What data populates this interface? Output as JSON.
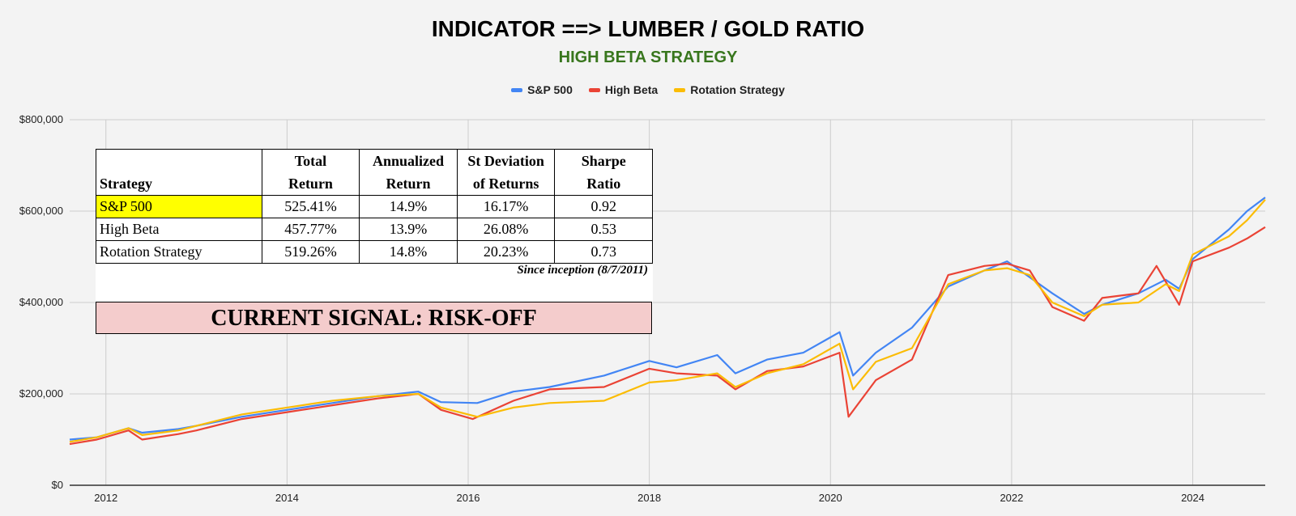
{
  "chart_data": {
    "type": "line",
    "title": "INDICATOR ==> LUMBER / GOLD RATIO",
    "subtitle": "HIGH BETA STRATEGY",
    "xlabel": "",
    "ylabel": "",
    "ylim": [
      0,
      800000
    ],
    "xlim": [
      2011.6,
      2024.8
    ],
    "grid": true,
    "legend_position": "top",
    "y_ticks": [
      "$0",
      "$200,000",
      "$400,000",
      "$600,000",
      "$800,000"
    ],
    "x_ticks": [
      "2012",
      "2014",
      "2016",
      "2018",
      "2020",
      "2022",
      "2024"
    ],
    "series": [
      {
        "name": "S&P 500",
        "color": "#4285f4",
        "points": [
          [
            2011.6,
            100000
          ],
          [
            2011.9,
            105000
          ],
          [
            2012.25,
            125000
          ],
          [
            2012.4,
            115000
          ],
          [
            2012.8,
            123000
          ],
          [
            2013.0,
            130000
          ],
          [
            2013.5,
            150000
          ],
          [
            2014.0,
            165000
          ],
          [
            2014.5,
            180000
          ],
          [
            2015.0,
            195000
          ],
          [
            2015.45,
            205000
          ],
          [
            2015.7,
            182000
          ],
          [
            2016.1,
            180000
          ],
          [
            2016.5,
            205000
          ],
          [
            2016.9,
            215000
          ],
          [
            2017.5,
            240000
          ],
          [
            2018.0,
            272000
          ],
          [
            2018.3,
            258000
          ],
          [
            2018.75,
            285000
          ],
          [
            2018.95,
            245000
          ],
          [
            2019.3,
            275000
          ],
          [
            2019.7,
            290000
          ],
          [
            2020.1,
            335000
          ],
          [
            2020.25,
            240000
          ],
          [
            2020.5,
            290000
          ],
          [
            2020.9,
            345000
          ],
          [
            2021.3,
            435000
          ],
          [
            2021.7,
            470000
          ],
          [
            2021.95,
            490000
          ],
          [
            2022.2,
            455000
          ],
          [
            2022.45,
            420000
          ],
          [
            2022.8,
            375000
          ],
          [
            2023.0,
            395000
          ],
          [
            2023.4,
            420000
          ],
          [
            2023.7,
            450000
          ],
          [
            2023.85,
            430000
          ],
          [
            2024.0,
            495000
          ],
          [
            2024.4,
            560000
          ],
          [
            2024.6,
            600000
          ],
          [
            2024.8,
            630000
          ]
        ]
      },
      {
        "name": "High Beta",
        "color": "#ea4335",
        "points": [
          [
            2011.6,
            90000
          ],
          [
            2011.9,
            100000
          ],
          [
            2012.25,
            120000
          ],
          [
            2012.4,
            100000
          ],
          [
            2012.8,
            112000
          ],
          [
            2013.0,
            120000
          ],
          [
            2013.5,
            145000
          ],
          [
            2014.0,
            160000
          ],
          [
            2014.5,
            175000
          ],
          [
            2015.0,
            190000
          ],
          [
            2015.45,
            200000
          ],
          [
            2015.7,
            165000
          ],
          [
            2016.05,
            145000
          ],
          [
            2016.5,
            185000
          ],
          [
            2016.9,
            210000
          ],
          [
            2017.5,
            215000
          ],
          [
            2018.0,
            255000
          ],
          [
            2018.3,
            245000
          ],
          [
            2018.75,
            240000
          ],
          [
            2018.95,
            210000
          ],
          [
            2019.3,
            250000
          ],
          [
            2019.7,
            260000
          ],
          [
            2020.1,
            290000
          ],
          [
            2020.2,
            150000
          ],
          [
            2020.5,
            230000
          ],
          [
            2020.9,
            275000
          ],
          [
            2021.3,
            460000
          ],
          [
            2021.7,
            480000
          ],
          [
            2021.95,
            485000
          ],
          [
            2022.2,
            470000
          ],
          [
            2022.45,
            390000
          ],
          [
            2022.8,
            360000
          ],
          [
            2023.0,
            410000
          ],
          [
            2023.4,
            420000
          ],
          [
            2023.6,
            480000
          ],
          [
            2023.85,
            395000
          ],
          [
            2024.0,
            490000
          ],
          [
            2024.4,
            520000
          ],
          [
            2024.6,
            540000
          ],
          [
            2024.8,
            565000
          ]
        ]
      },
      {
        "name": "Rotation Strategy",
        "color": "#fbbc04",
        "points": [
          [
            2011.6,
            95000
          ],
          [
            2011.9,
            105000
          ],
          [
            2012.25,
            125000
          ],
          [
            2012.4,
            110000
          ],
          [
            2012.8,
            120000
          ],
          [
            2013.0,
            130000
          ],
          [
            2013.5,
            155000
          ],
          [
            2014.0,
            170000
          ],
          [
            2014.5,
            185000
          ],
          [
            2015.0,
            195000
          ],
          [
            2015.45,
            200000
          ],
          [
            2015.7,
            170000
          ],
          [
            2016.1,
            150000
          ],
          [
            2016.5,
            170000
          ],
          [
            2016.9,
            180000
          ],
          [
            2017.5,
            185000
          ],
          [
            2018.0,
            225000
          ],
          [
            2018.3,
            230000
          ],
          [
            2018.75,
            245000
          ],
          [
            2018.95,
            215000
          ],
          [
            2019.3,
            245000
          ],
          [
            2019.7,
            265000
          ],
          [
            2020.1,
            310000
          ],
          [
            2020.25,
            210000
          ],
          [
            2020.5,
            270000
          ],
          [
            2020.9,
            300000
          ],
          [
            2021.3,
            440000
          ],
          [
            2021.7,
            470000
          ],
          [
            2021.95,
            475000
          ],
          [
            2022.2,
            460000
          ],
          [
            2022.45,
            400000
          ],
          [
            2022.8,
            370000
          ],
          [
            2023.0,
            395000
          ],
          [
            2023.4,
            400000
          ],
          [
            2023.7,
            440000
          ],
          [
            2023.85,
            425000
          ],
          [
            2024.0,
            505000
          ],
          [
            2024.4,
            545000
          ],
          [
            2024.6,
            580000
          ],
          [
            2024.8,
            625000
          ]
        ]
      }
    ]
  },
  "stats_table": {
    "headers": {
      "strategy": "Strategy",
      "total_line1": "Total",
      "total_line2": "Return",
      "annualized_line1": "Annualized",
      "annualized_line2": "Return",
      "stdev_line1": "St Deviation",
      "stdev_line2": "of Returns",
      "sharpe_line1": "Sharpe",
      "sharpe_line2": "Ratio"
    },
    "rows": [
      {
        "name": "S&P 500",
        "total": "525.41%",
        "annualized": "14.9%",
        "stdev": "16.17%",
        "sharpe": "0.92"
      },
      {
        "name": "High Beta",
        "total": "457.77%",
        "annualized": "13.9%",
        "stdev": "26.08%",
        "sharpe": "0.53"
      },
      {
        "name": "Rotation Strategy",
        "total": "519.26%",
        "annualized": "14.8%",
        "stdev": "20.23%",
        "sharpe": "0.73"
      }
    ],
    "since_inception": "Since inception (8/7/2011)",
    "highlight_color": "#ffff00"
  },
  "signal": {
    "text": "CURRENT SIGNAL: RISK-OFF",
    "color": "#f4cccc"
  }
}
